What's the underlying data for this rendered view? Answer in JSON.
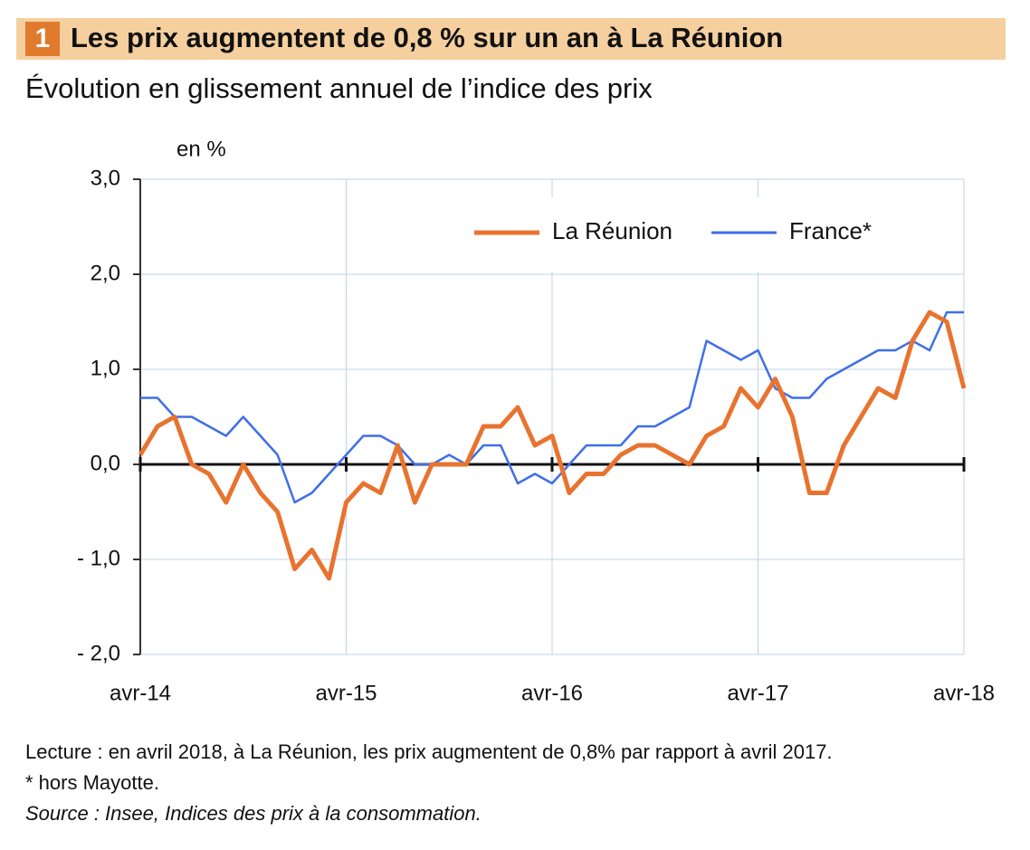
{
  "chart_data": {
    "type": "line",
    "number": "1",
    "title": "Les prix augmentent de 0,8 % sur un an à La Réunion",
    "subtitle": "Évolution en glissement annuel de l’indice des prix",
    "y_label": "en %",
    "categories": [
      "avr-14",
      null,
      null,
      null,
      null,
      null,
      null,
      null,
      null,
      null,
      null,
      null,
      "avr-15",
      null,
      null,
      null,
      null,
      null,
      null,
      null,
      null,
      null,
      null,
      null,
      "avr-16",
      null,
      null,
      null,
      null,
      null,
      null,
      null,
      null,
      null,
      null,
      null,
      "avr-17",
      null,
      null,
      null,
      null,
      null,
      null,
      null,
      null,
      null,
      null,
      null,
      "avr-18"
    ],
    "series": [
      {
        "name": "La Réunion",
        "color": "#e8732f",
        "values": [
          0.1,
          0.4,
          0.5,
          0.0,
          -0.1,
          -0.4,
          0.0,
          -0.3,
          -0.5,
          -1.1,
          -0.9,
          -1.2,
          -0.4,
          -0.2,
          -0.3,
          0.2,
          -0.4,
          0.0,
          0.0,
          0.0,
          0.4,
          0.4,
          0.6,
          0.2,
          0.3,
          -0.3,
          -0.1,
          -0.1,
          0.1,
          0.2,
          0.2,
          0.1,
          0.0,
          0.3,
          0.4,
          0.8,
          0.6,
          0.9,
          0.5,
          -0.3,
          -0.3,
          0.2,
          0.5,
          0.8,
          0.7,
          1.3,
          1.6,
          1.5,
          0.8
        ]
      },
      {
        "name": "France*",
        "color": "#3f6fe8",
        "values": [
          0.7,
          0.7,
          0.5,
          0.5,
          0.4,
          0.3,
          0.5,
          0.3,
          0.1,
          -0.4,
          -0.3,
          -0.1,
          0.1,
          0.3,
          0.3,
          0.2,
          0.0,
          0.0,
          0.1,
          0.0,
          0.2,
          0.2,
          -0.2,
          -0.1,
          -0.2,
          0.0,
          0.2,
          0.2,
          0.2,
          0.4,
          0.4,
          0.5,
          0.6,
          1.3,
          1.2,
          1.1,
          1.2,
          0.8,
          0.7,
          0.7,
          0.9,
          1.0,
          1.1,
          1.2,
          1.2,
          1.3,
          1.2,
          1.6,
          1.6
        ]
      }
    ],
    "ylim": [
      -2,
      3
    ],
    "yticks": [
      {
        "value": -2,
        "label": "- 2,0"
      },
      {
        "value": -1,
        "label": "- 1,0"
      },
      {
        "value": 0,
        "label": "0,0"
      },
      {
        "value": 1,
        "label": "1,0"
      },
      {
        "value": 2,
        "label": "2,0"
      },
      {
        "value": 3,
        "label": "3,0"
      }
    ],
    "grid": true,
    "legend": "upper right",
    "notes": [
      "Lecture : en avril 2018, à La Réunion, les prix augmentent de 0,8% par rapport à avril 2017.",
      "* hors Mayotte.",
      "Source : Insee, Indices des prix à la consommation."
    ]
  }
}
